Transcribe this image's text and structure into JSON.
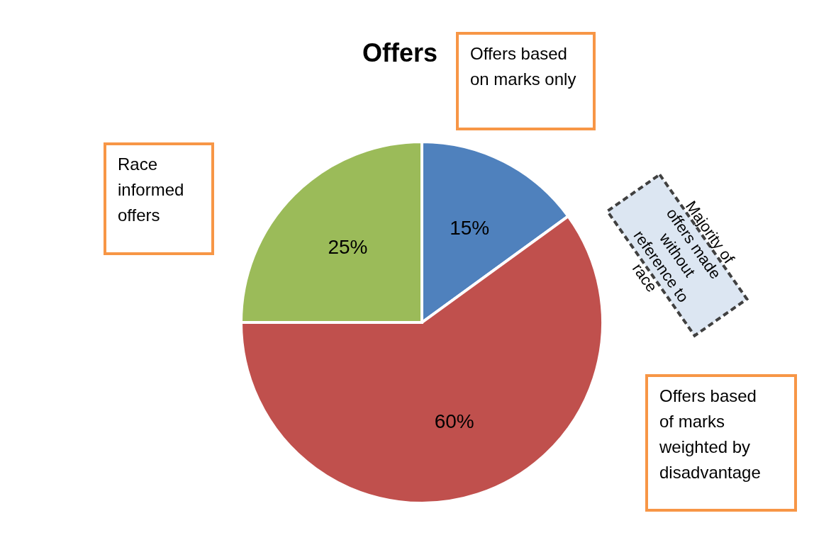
{
  "chart_data": {
    "type": "pie",
    "title": "Offers",
    "categories": [
      "Offers based on marks only",
      "Offers based of marks weighted by disadvantage",
      "Race informed offers"
    ],
    "values": [
      15,
      60,
      25
    ],
    "colors": [
      "#4f81bd",
      "#c0504d",
      "#9bbb59"
    ],
    "value_labels": [
      "15%",
      "60%",
      "25%"
    ],
    "annotations": [
      "Majority of offers made without reference to race"
    ],
    "legend": false
  }
}
